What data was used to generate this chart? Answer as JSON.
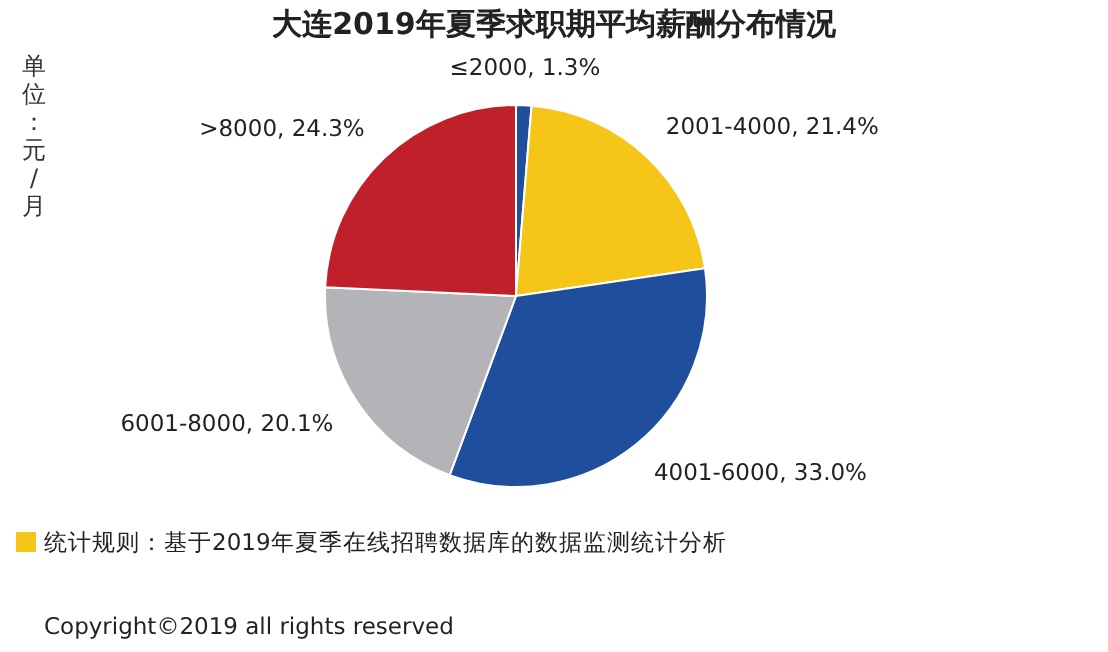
{
  "chart_data": {
    "type": "pie",
    "title": "大连2019年夏季求职期平均薪酬分布情况",
    "ylabel": "单位：元/月",
    "categories": [
      "≤2000",
      "2001-4000",
      "4001-6000",
      "6001-8000",
      ">8000"
    ],
    "values": [
      1.3,
      21.4,
      33.0,
      20.1,
      24.3
    ],
    "value_labels": [
      "1.3%",
      "21.4%",
      "33.0%",
      "20.1%",
      "24.3%"
    ],
    "colors": [
      "#1f4e9c",
      "#f5c518",
      "#1f4e9c",
      "#b4b4b8",
      "#c0202a"
    ],
    "annotations": [
      "统计规则：基于2019年夏季在线招聘数据库的数据监测统计分析",
      "Copyright©2019 all rights reserved"
    ]
  }
}
